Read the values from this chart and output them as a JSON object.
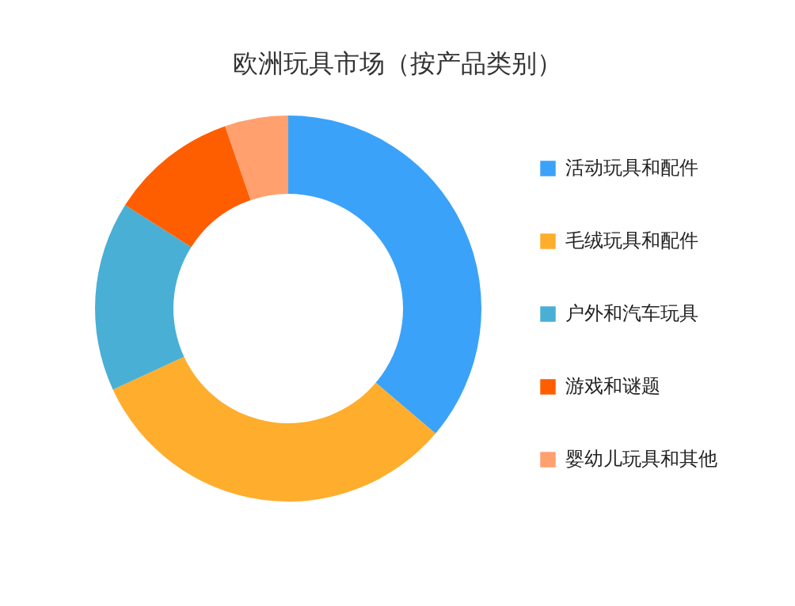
{
  "chart_data": {
    "type": "donut",
    "title": "欧洲玩具市场（按产品类别）",
    "categories": [
      "活动玩具和配件",
      "毛绒玩具和配件",
      "户外和汽车玩具",
      "游戏和谜题",
      "婴幼儿玩具和其他"
    ],
    "values": [
      36.2,
      31.9,
      15.9,
      10.7,
      5.3
    ],
    "colors": [
      "#3ba2f9",
      "#ffad2d",
      "#4aafd4",
      "#ff5e00",
      "#ffa06e"
    ],
    "legend": "right"
  }
}
